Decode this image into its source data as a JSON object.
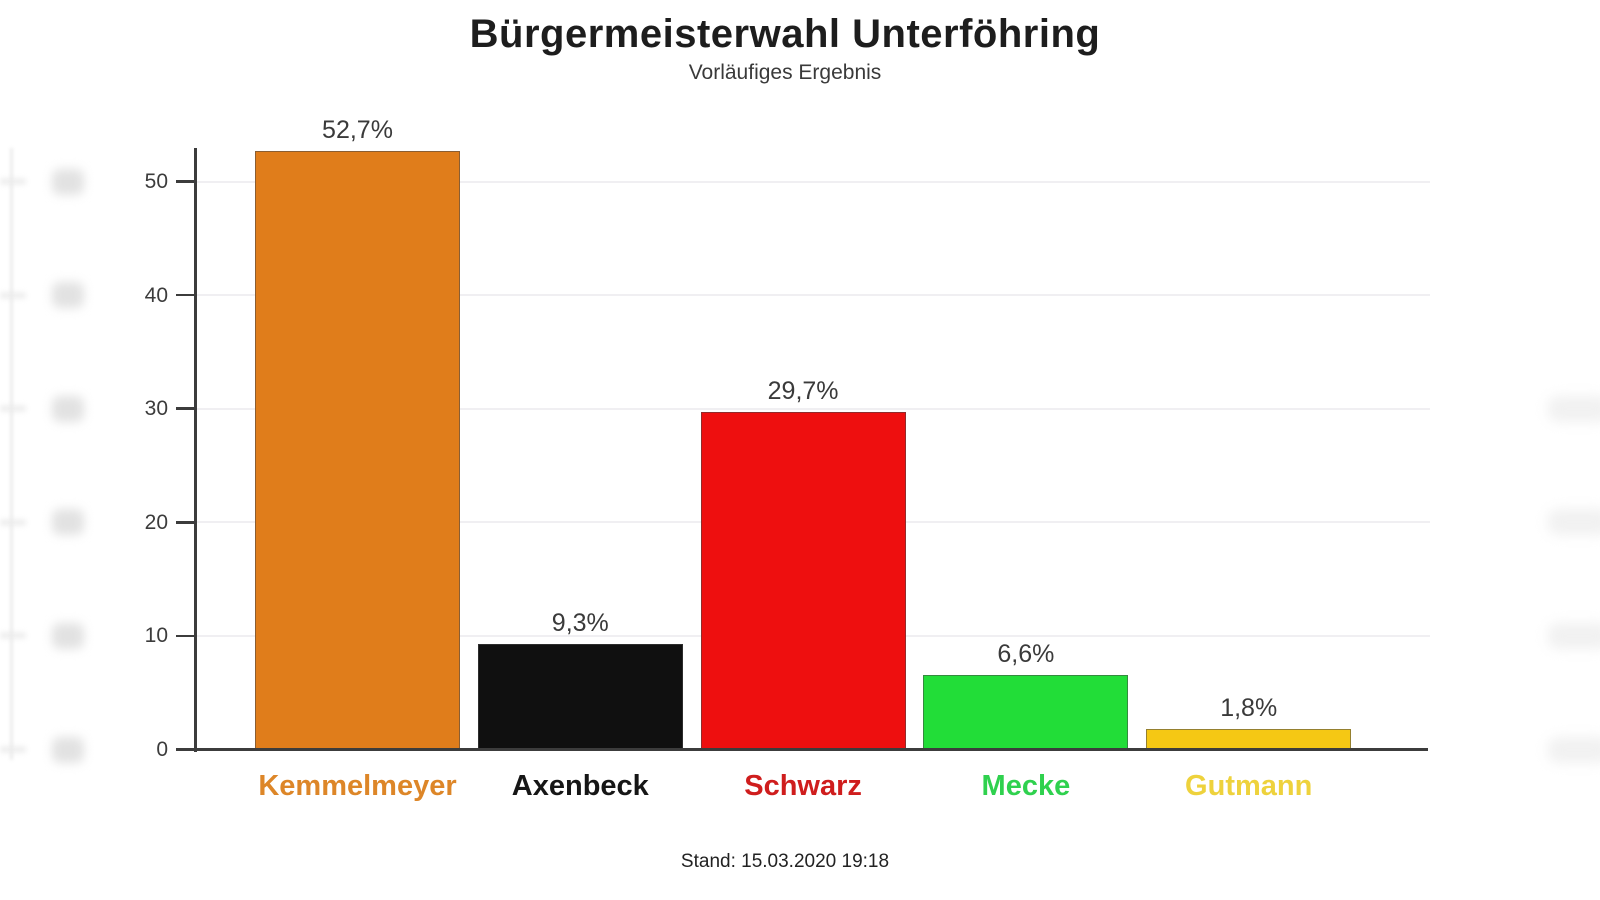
{
  "header": {
    "title": "Bürgermeisterwahl Unterföhring",
    "subtitle": "Vorläufiges Ergebnis"
  },
  "footer": {
    "stand": "Stand: 15.03.2020 19:18"
  },
  "chart_data": {
    "type": "bar",
    "title": "Bürgermeisterwahl Unterföhring",
    "subtitle": "Vorläufiges Ergebnis",
    "categories": [
      "Kemmelmeyer",
      "Axenbeck",
      "Schwarz",
      "Mecke",
      "Gutmann"
    ],
    "values": [
      52.7,
      9.3,
      29.7,
      6.6,
      1.8
    ],
    "value_labels": [
      "52,7%",
      "9,3%",
      "29,7%",
      "6,6%",
      "1,8%"
    ],
    "bar_colors": [
      "#e07d1b",
      "#101010",
      "#ee0f0f",
      "#22dd38",
      "#f5c814"
    ],
    "category_label_colors": [
      "#dd8628",
      "#161616",
      "#cf1d1d",
      "#2fd14e",
      "#eed23c"
    ],
    "xlabel": "",
    "ylabel": "",
    "ylim": [
      0,
      55
    ],
    "yticks": [
      0,
      10,
      20,
      30,
      40,
      50
    ],
    "grid": true,
    "legend": "none",
    "footer_note": "Stand: 15.03.2020 19:18"
  }
}
